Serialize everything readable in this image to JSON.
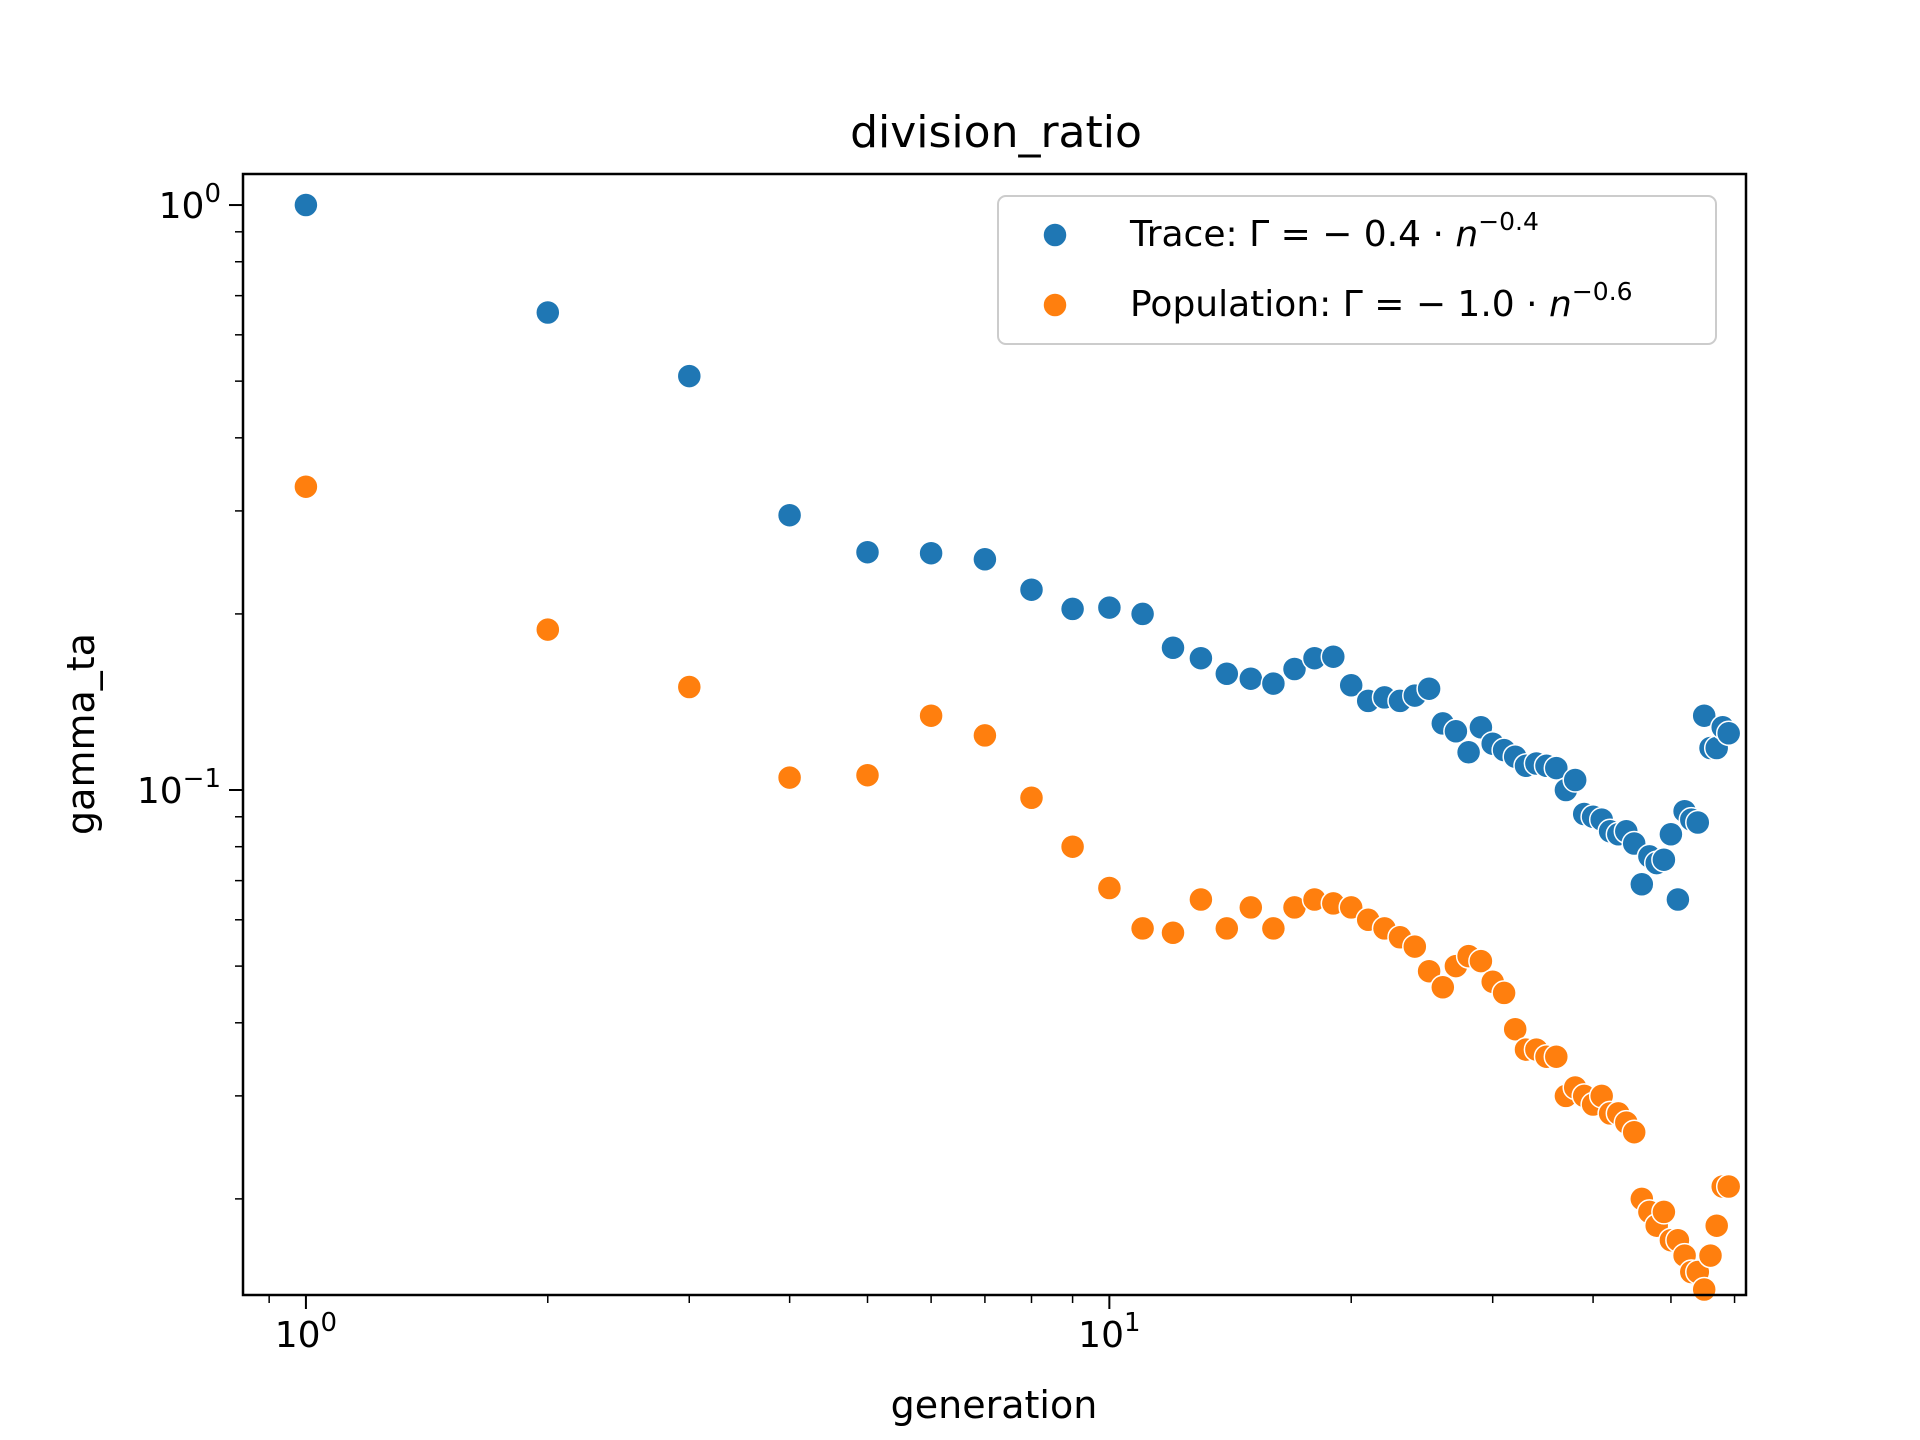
{
  "chart_data": {
    "type": "scatter",
    "title": "division_ratio",
    "xlabel": "generation",
    "ylabel": "gamma_ta",
    "xscale": "log",
    "yscale": "log",
    "xlim": [
      0.835,
      62
    ],
    "ylim": [
      0.0137,
      1.13
    ],
    "x_ticks": [
      {
        "value": 1,
        "base": "10",
        "exp": "0"
      },
      {
        "value": 10,
        "base": "10",
        "exp": "1"
      }
    ],
    "y_ticks": [
      {
        "value": 1,
        "base": "10",
        "exp": "0"
      },
      {
        "value": 0.1,
        "base": "10",
        "exp": "−1"
      }
    ],
    "grid": false,
    "legend_position": "top-right",
    "series": [
      {
        "name": "Trace: Γ = − 0.4 · n^−0.4",
        "legend": {
          "prefix": "Trace: Γ = − 0.4 · ",
          "var": "n",
          "exp": "−0.4"
        },
        "color": "#1f77b4",
        "x": [
          1,
          2,
          3,
          4,
          5,
          6,
          7,
          8,
          9,
          10,
          11,
          12,
          13,
          14,
          15,
          16,
          17,
          18,
          19,
          20,
          21,
          22,
          23,
          24,
          25,
          26,
          27,
          28,
          29,
          30,
          31,
          32,
          33,
          34,
          35,
          36,
          37,
          38,
          39,
          40,
          41,
          42,
          43,
          44,
          45,
          46,
          47,
          48,
          49,
          50,
          51,
          52,
          53,
          54,
          55,
          56,
          57,
          58,
          59
        ],
        "y": [
          1.0,
          0.655,
          0.51,
          0.295,
          0.255,
          0.254,
          0.248,
          0.22,
          0.204,
          0.205,
          0.2,
          0.175,
          0.168,
          0.158,
          0.155,
          0.152,
          0.161,
          0.168,
          0.169,
          0.151,
          0.142,
          0.144,
          0.142,
          0.145,
          0.149,
          0.13,
          0.126,
          0.116,
          0.128,
          0.12,
          0.117,
          0.114,
          0.11,
          0.111,
          0.11,
          0.109,
          0.1,
          0.104,
          0.091,
          0.09,
          0.089,
          0.085,
          0.084,
          0.085,
          0.081,
          0.069,
          0.077,
          0.075,
          0.076,
          0.084,
          0.065,
          0.092,
          0.089,
          0.088,
          0.134,
          0.118,
          0.118,
          0.128,
          0.125
        ]
      },
      {
        "name": "Population: Γ = − 1.0 · n^−0.6",
        "legend": {
          "prefix": "Population: Γ = − 1.0 · ",
          "var": "n",
          "exp": "−0.6"
        },
        "color": "#ff7f0e",
        "x": [
          1,
          2,
          3,
          4,
          5,
          6,
          7,
          8,
          9,
          10,
          11,
          12,
          13,
          14,
          15,
          16,
          17,
          18,
          19,
          20,
          21,
          22,
          23,
          24,
          25,
          26,
          27,
          28,
          29,
          30,
          31,
          32,
          33,
          34,
          35,
          36,
          37,
          38,
          39,
          40,
          41,
          42,
          43,
          44,
          45,
          46,
          47,
          48,
          49,
          50,
          51,
          52,
          53,
          54,
          55,
          56,
          57,
          58,
          59
        ],
        "y": [
          0.33,
          0.188,
          0.15,
          0.105,
          0.106,
          0.134,
          0.124,
          0.097,
          0.08,
          0.068,
          0.058,
          0.057,
          0.065,
          0.058,
          0.063,
          0.058,
          0.063,
          0.065,
          0.064,
          0.063,
          0.06,
          0.058,
          0.056,
          0.054,
          0.049,
          0.046,
          0.05,
          0.052,
          0.051,
          0.047,
          0.045,
          0.039,
          0.036,
          0.036,
          0.035,
          0.035,
          0.03,
          0.031,
          0.03,
          0.029,
          0.03,
          0.028,
          0.028,
          0.027,
          0.026,
          0.02,
          0.019,
          0.018,
          0.019,
          0.017,
          0.017,
          0.016,
          0.015,
          0.015,
          0.014,
          0.016,
          0.018,
          0.021,
          0.021
        ]
      }
    ]
  }
}
